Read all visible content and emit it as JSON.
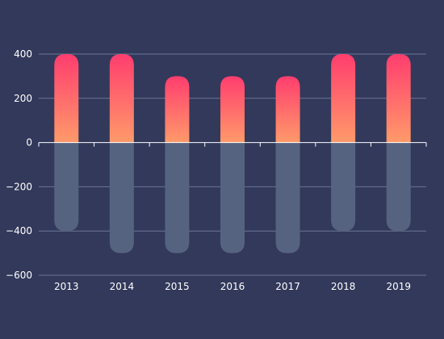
{
  "chart_data": {
    "type": "bar",
    "title": "",
    "xlabel": "",
    "ylabel": "",
    "categories": [
      "2013",
      "2014",
      "2015",
      "2016",
      "2017",
      "2018",
      "2019"
    ],
    "series": [
      {
        "values": [
          400,
          400,
          300,
          300,
          300,
          400,
          400
        ]
      },
      {
        "values": [
          -400,
          -500,
          -500,
          -500,
          -500,
          -400,
          -400
        ]
      }
    ],
    "ylim": [
      -600,
      400
    ],
    "yticks": [
      400,
      200,
      0,
      -200,
      -400,
      -600
    ],
    "ytick_labels": [
      "400",
      "200",
      "0",
      "−200",
      "−400",
      "−600"
    ],
    "grid": true,
    "legend": "none",
    "colors": {
      "background": "#32395b",
      "positive_top": "#ff3d6e",
      "positive_bottom": "#ff9a6a",
      "negative": "#566380",
      "grid": "#6c7595",
      "axis": "#ffffff",
      "text": "#ffffff"
    }
  }
}
